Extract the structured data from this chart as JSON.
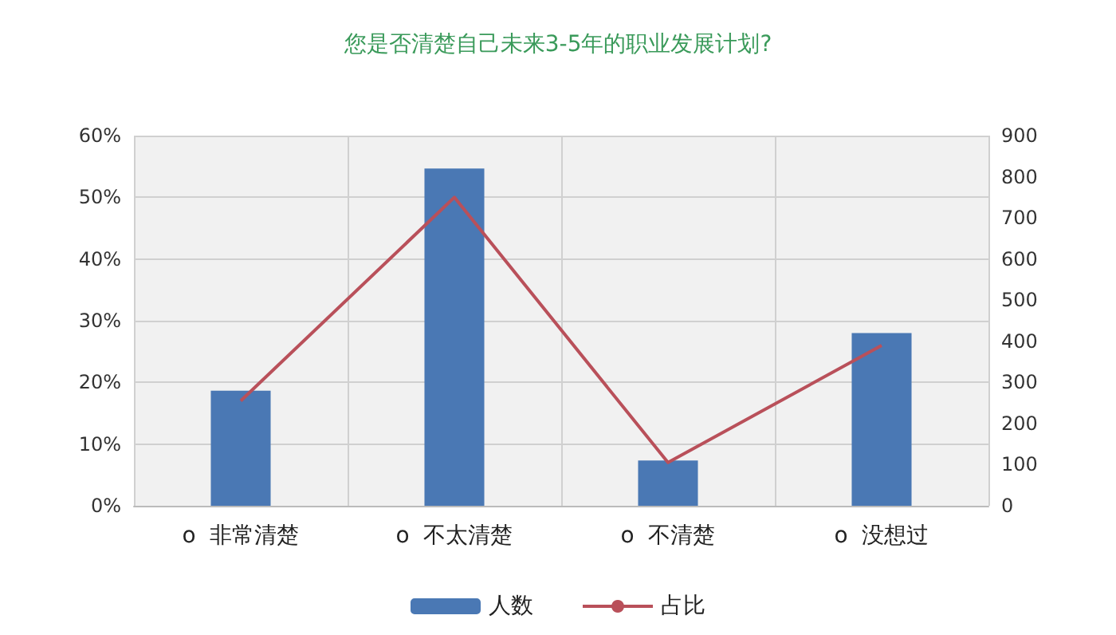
{
  "chart_data": {
    "type": "bar",
    "title": "您是否清楚自己未来3-5年的职业发展计划?",
    "categories": [
      "o  非常清楚",
      "o  不太清楚",
      "o  不清楚",
      "o  没想过"
    ],
    "series": [
      {
        "name": "人数",
        "axis": "y2",
        "color": "#4a78b4",
        "values": [
          280,
          820,
          110,
          420
        ]
      },
      {
        "name": "占比",
        "type": "line",
        "axis": "y",
        "color": "#b9505a",
        "values": [
          17,
          50,
          7,
          26
        ]
      }
    ],
    "ylim": [
      0,
      60
    ],
    "yticks": [
      {
        "value": 0,
        "label": "0%"
      },
      {
        "value": 10,
        "label": "10%"
      },
      {
        "value": 20,
        "label": "20%"
      },
      {
        "value": 30,
        "label": "30%"
      },
      {
        "value": 40,
        "label": "40%"
      },
      {
        "value": 50,
        "label": "50%"
      },
      {
        "value": 60,
        "label": "60%"
      }
    ],
    "y2lim": [
      0,
      900
    ],
    "y2ticks": [
      0,
      100,
      200,
      300,
      400,
      500,
      600,
      700,
      800,
      900
    ],
    "grid": true,
    "legend": "bottom",
    "marker": "none"
  }
}
